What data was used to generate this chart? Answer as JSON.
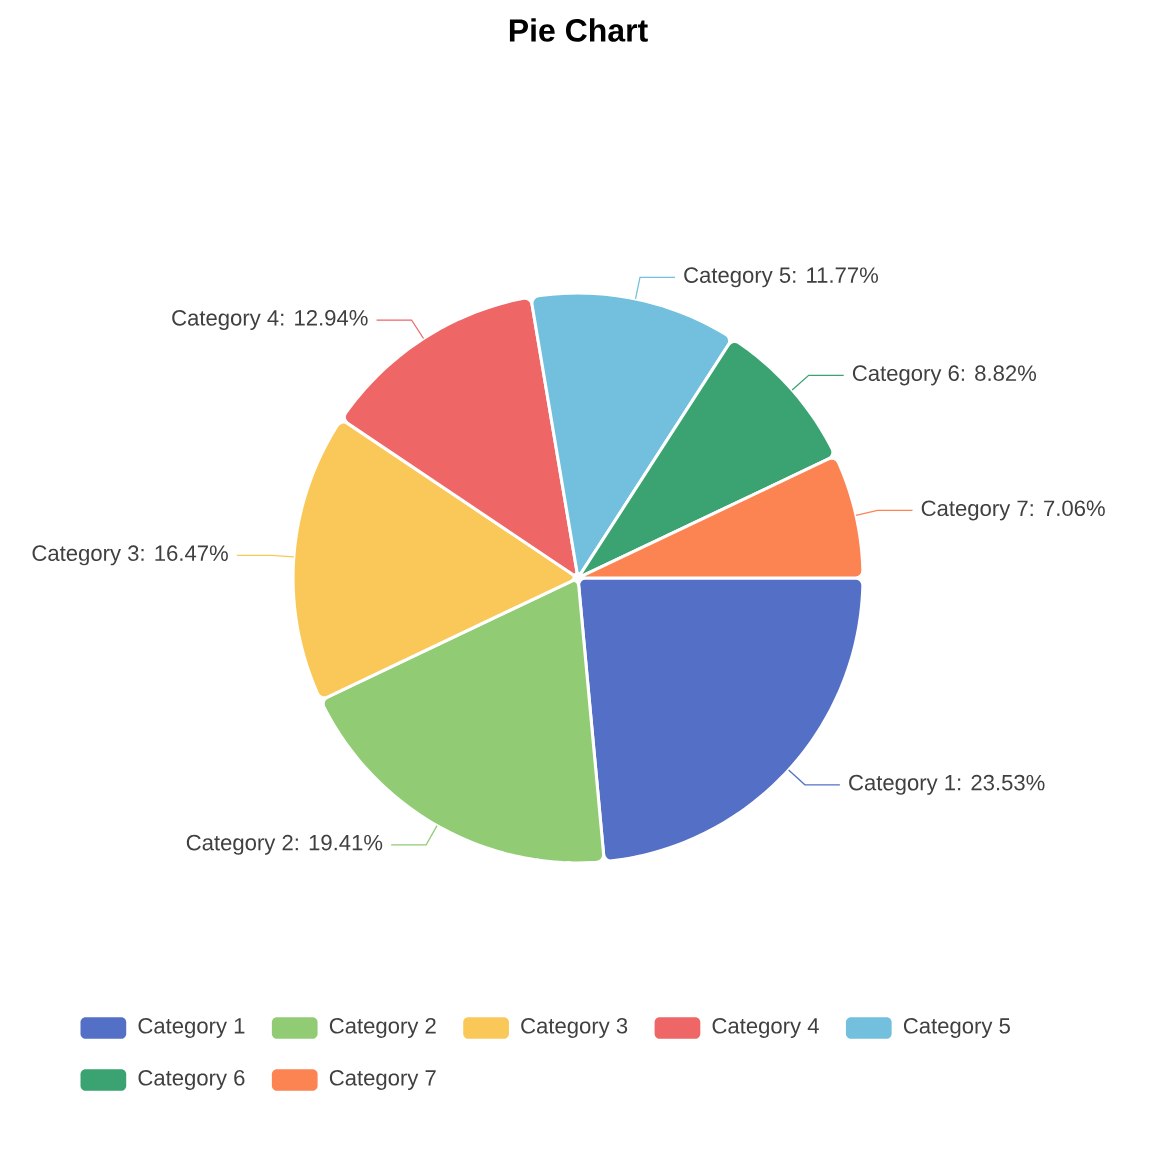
{
  "chart_data": {
    "type": "pie",
    "title": "Pie Chart",
    "categories": [
      "Category 1",
      "Category 2",
      "Category 3",
      "Category 4",
      "Category 5",
      "Category 6",
      "Category 7"
    ],
    "values": [
      23.53,
      19.41,
      16.47,
      12.94,
      11.77,
      8.82,
      7.06
    ],
    "value_labels": [
      "Category 1: 23.53%",
      "Category 2: 19.41%",
      "Category 3: 16.47%",
      "Category 4: 12.94%",
      "Category 5: 11.77%",
      "Category 6: 8.82%",
      "Category 7: 7.06%"
    ],
    "colors": [
      "#5470c6",
      "#91cc75",
      "#fac858",
      "#ee6666",
      "#73c0de",
      "#3ba272",
      "#fc8452"
    ],
    "legend": "bottom"
  }
}
